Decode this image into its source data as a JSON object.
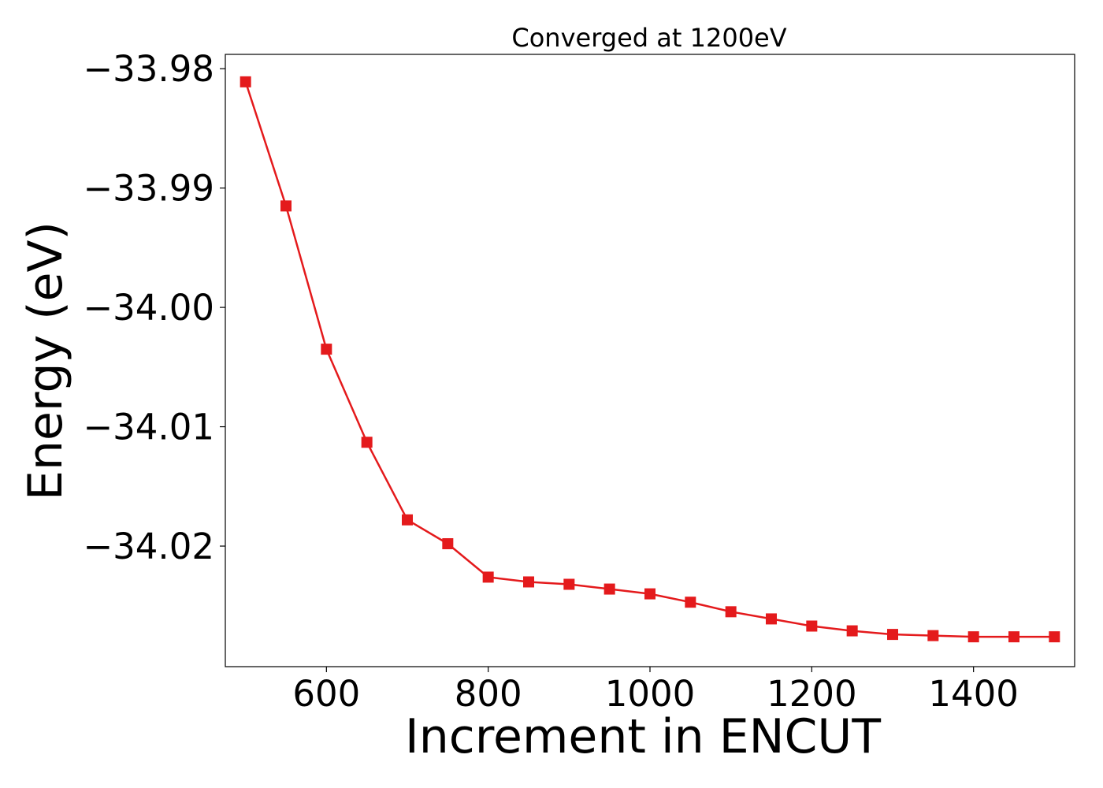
{
  "chart_data": {
    "type": "line",
    "title": "Converged at 1200eV",
    "xlabel": "Increment in ENCUT",
    "ylabel": "Energy (eV)",
    "xlim": [
      475,
      1525
    ],
    "ylim": [
      -34.0301,
      -33.9788
    ],
    "xticks": [
      600,
      800,
      1000,
      1200,
      1400
    ],
    "xtick_labels": [
      "600",
      "800",
      "1000",
      "1200",
      "1400"
    ],
    "yticks": [
      -33.98,
      -33.99,
      -34.0,
      -34.01,
      -34.02
    ],
    "ytick_labels": [
      "−33.98",
      "−33.99",
      "−34.00",
      "−34.01",
      "−34.02"
    ],
    "grid": false,
    "series": [
      {
        "color": "#e41a1c",
        "marker": "square",
        "x": [
          500,
          550,
          600,
          650,
          700,
          750,
          800,
          850,
          900,
          950,
          1000,
          1050,
          1100,
          1150,
          1200,
          1250,
          1300,
          1350,
          1400,
          1450,
          1500
        ],
        "y": [
          -33.9811,
          -33.9915,
          -34.0035,
          -34.0113,
          -34.0178,
          -34.0198,
          -34.0226,
          -34.023,
          -34.0232,
          -34.0236,
          -34.024,
          -34.0247,
          -34.0255,
          -34.0261,
          -34.0267,
          -34.0271,
          -34.0274,
          -34.0275,
          -34.0276,
          -34.0276,
          -34.0276
        ]
      }
    ]
  }
}
